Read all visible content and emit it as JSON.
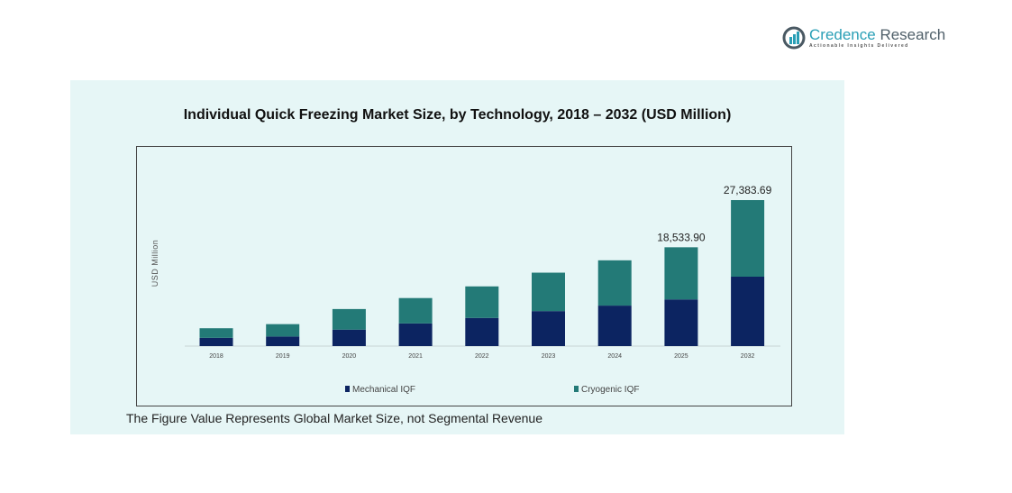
{
  "logo": {
    "name_part1": "Credence",
    "name_part2": "Research",
    "tagline": "Actionable Insights Delivered"
  },
  "footer_note": "The Figure Value Represents Global Market Size, not Segmental Revenue",
  "colors": {
    "mechanical": "#0c2461",
    "cryogenic": "#237a77",
    "panel": "#e6f6f6"
  },
  "chart_data": {
    "type": "bar",
    "stacked": true,
    "title": "Individual Quick Freezing Market Size, by Technology, 2018 – 2032 (USD Million)",
    "xlabel": "",
    "ylabel": "USD Million",
    "categories": [
      "2018",
      "2019",
      "2020",
      "2021",
      "2022",
      "2023",
      "2024",
      "2025",
      "2032"
    ],
    "series": [
      {
        "name": "Mechanical IQF",
        "values": [
          1544,
          1802,
          3089,
          4247,
          5277,
          6564,
          7593,
          8752,
          13016
        ]
      },
      {
        "name": "Cryogenic IQF",
        "values": [
          1802,
          2317,
          3861,
          4762,
          5920,
          7207,
          8494,
          9781.9,
          14367.69
        ]
      }
    ],
    "data_labels": {
      "2025": "18,533.90",
      "2032": "27,383.69"
    },
    "ylim": [
      0,
      27383.69
    ],
    "grid": false,
    "legend": "bottom"
  }
}
